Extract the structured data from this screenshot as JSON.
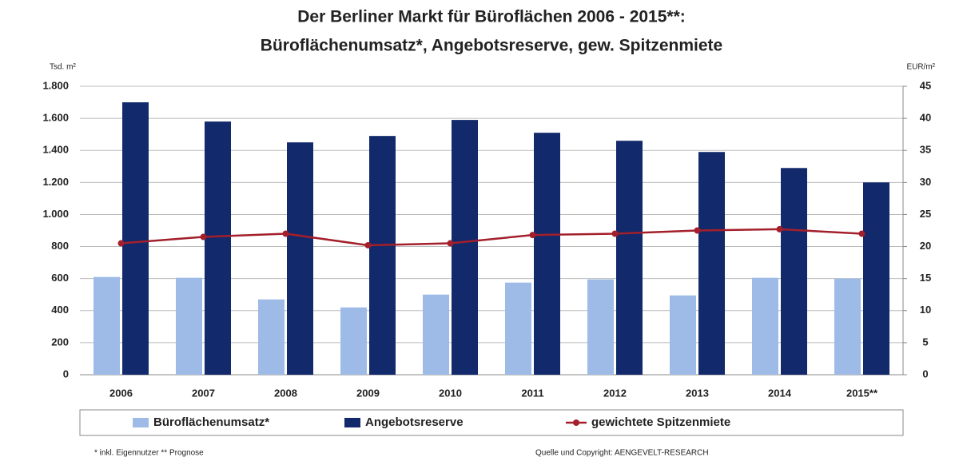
{
  "chart_data": {
    "type": "bar",
    "title": "Der Berliner Markt für Büroflächen 2006 - 2015**:",
    "subtitle": "Büroflächenumsatz*, Angebotsreserve, gew. Spitzenmiete",
    "y_label": "Tsd. m²",
    "y2_label": "EUR/m²",
    "categories": [
      "2006",
      "2007",
      "2008",
      "2009",
      "2010",
      "2011",
      "2012",
      "2013",
      "2014",
      "2015**"
    ],
    "series": [
      {
        "name": "Büroflächenumsatz*",
        "color": "#9dbbe6",
        "values": [
          610,
          605,
          470,
          420,
          500,
          575,
          595,
          495,
          605,
          600
        ]
      },
      {
        "name": "Angebotsreserve",
        "color": "#12296b",
        "values": [
          1700,
          1580,
          1450,
          1490,
          1590,
          1510,
          1460,
          1390,
          1290,
          1200
        ]
      },
      {
        "name": "gewichtete Spitzenmiete",
        "color": "#a31f2b",
        "type": "line",
        "axis": "y2",
        "values": [
          20.5,
          21.5,
          22,
          20.2,
          20.5,
          21.8,
          22,
          22.5,
          22.7,
          22
        ]
      }
    ],
    "ylim": [
      0,
      1800
    ],
    "yticks": [
      0,
      200,
      400,
      600,
      800,
      {
        "value": 1000,
        "label": "1.000"
      },
      {
        "value": 1200,
        "label": "1.200"
      },
      {
        "value": 1400,
        "label": "1.400"
      },
      {
        "value": 1600,
        "label": "1.600"
      },
      {
        "value": 1800,
        "label": "1.800"
      }
    ],
    "y2lim": [
      0,
      45
    ],
    "y2ticks": [
      0,
      5,
      10,
      15,
      20,
      25,
      30,
      35,
      40,
      45
    ],
    "grid": true,
    "legend": "bottom",
    "footnote": "* inkl. Eigennutzer ** Prognose",
    "source": "Quelle und Copyright: AENGEVELT-RESEARCH"
  }
}
